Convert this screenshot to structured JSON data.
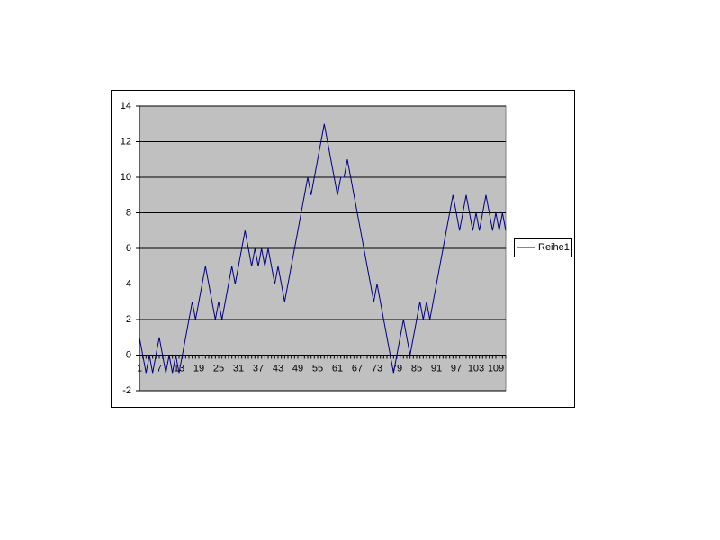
{
  "chart_data": {
    "type": "line",
    "categories": [
      1,
      null,
      null,
      null,
      null,
      null,
      7,
      null,
      null,
      null,
      null,
      null,
      13,
      null,
      null,
      null,
      null,
      null,
      19,
      null,
      null,
      null,
      null,
      null,
      25,
      null,
      null,
      null,
      null,
      null,
      31,
      null,
      null,
      null,
      null,
      null,
      37,
      null,
      null,
      null,
      null,
      null,
      43,
      null,
      null,
      null,
      null,
      null,
      49,
      null,
      null,
      null,
      null,
      null,
      55,
      null,
      null,
      null,
      null,
      null,
      61,
      null,
      null,
      null,
      null,
      null,
      67,
      null,
      null,
      null,
      null,
      null,
      73,
      null,
      null,
      null,
      null,
      null,
      79,
      null,
      null,
      null,
      null,
      null,
      85,
      null,
      null,
      null,
      null,
      null,
      91,
      null,
      null,
      null,
      null,
      null,
      97,
      null,
      null,
      null,
      null,
      null,
      103,
      null,
      null,
      null,
      null,
      null,
      109,
      null,
      null,
      null
    ],
    "series": [
      {
        "name": "Reihe1",
        "color": "#000080",
        "values": [
          1,
          0,
          -1,
          0,
          -1,
          0,
          1,
          0,
          -1,
          0,
          -1,
          0,
          -1,
          0,
          1,
          2,
          3,
          2,
          3,
          4,
          5,
          4,
          3,
          2,
          3,
          2,
          3,
          4,
          5,
          4,
          5,
          6,
          7,
          6,
          5,
          6,
          5,
          6,
          5,
          6,
          5,
          4,
          5,
          4,
          3,
          4,
          5,
          6,
          7,
          8,
          9,
          10,
          9,
          10,
          11,
          12,
          13,
          12,
          11,
          10,
          9,
          10,
          10,
          11,
          10,
          9,
          8,
          7,
          6,
          5,
          4,
          3,
          4,
          3,
          2,
          1,
          0,
          -1,
          0,
          1,
          2,
          1,
          0,
          1,
          2,
          3,
          2,
          3,
          2,
          3,
          4,
          5,
          6,
          7,
          8,
          9,
          8,
          7,
          8,
          9,
          8,
          7,
          8,
          7,
          8,
          9,
          8,
          7,
          8,
          7,
          8,
          7
        ]
      }
    ],
    "ylim": [
      -2,
      14
    ],
    "yticks": [
      -2,
      0,
      2,
      4,
      6,
      8,
      10,
      12,
      14
    ],
    "grid": true,
    "legend": "right",
    "plot_background": "#c0c0c0"
  }
}
